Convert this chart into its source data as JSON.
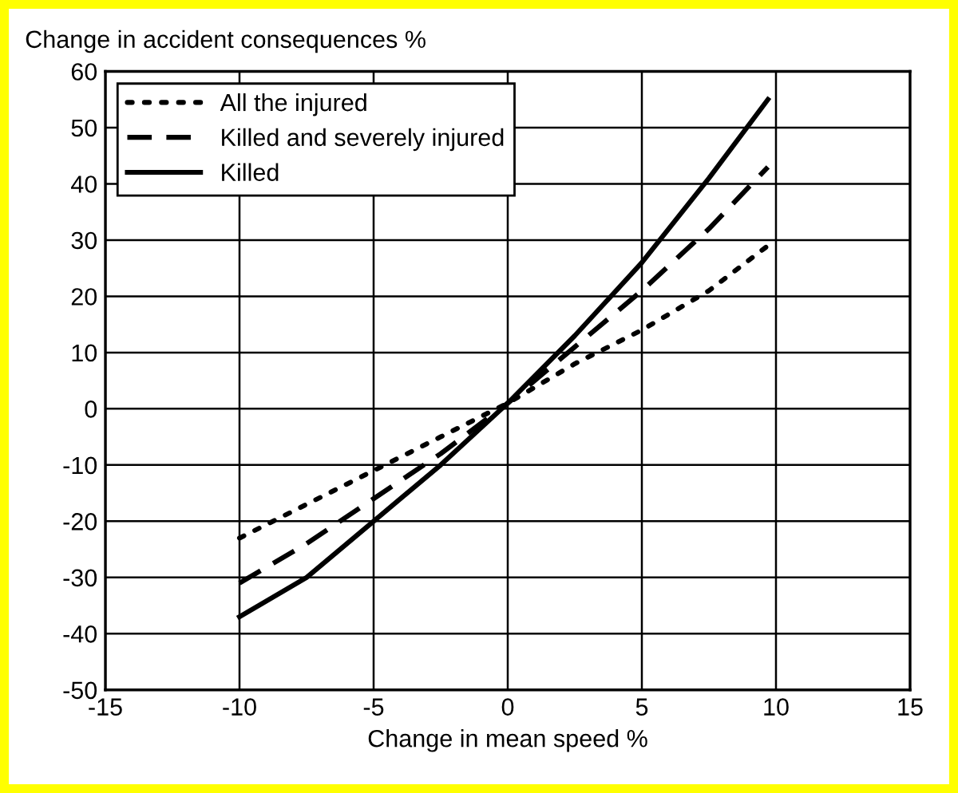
{
  "chart_data": {
    "type": "line",
    "xlabel": "Change in mean speed %",
    "ylabel": "Change in accident consequences %",
    "series": [
      {
        "name": "All the injured",
        "color": "#000000",
        "line_style": "dotted",
        "x": [
          -10,
          -7.5,
          -5,
          -2.5,
          0,
          2.5,
          5,
          7.5,
          9.7
        ],
        "values": [
          -23,
          -17,
          -11,
          -5,
          1,
          8,
          14,
          21,
          29
        ]
      },
      {
        "name": "Killed and severely injured",
        "color": "#000000",
        "line_style": "dashed",
        "x": [
          -10,
          -7.5,
          -5,
          -2.5,
          0,
          2.5,
          5,
          7.5,
          9.7
        ],
        "values": [
          -31,
          -24,
          -16,
          -8,
          1,
          11,
          21,
          32,
          43
        ]
      },
      {
        "name": "Killed",
        "color": "#000000",
        "line_style": "solid",
        "x": [
          -10,
          -7.5,
          -5,
          -2.5,
          0,
          2.5,
          5,
          7.5,
          9.7
        ],
        "values": [
          -37,
          -30,
          -20,
          -10,
          1,
          13,
          26,
          41,
          55
        ]
      }
    ],
    "xlim": [
      -15,
      15
    ],
    "xticks": [
      -15,
      -10,
      -5,
      0,
      5,
      10,
      15
    ],
    "ylim": [
      -50,
      60
    ],
    "yticks": [
      -50,
      -40,
      -30,
      -20,
      -10,
      0,
      10,
      20,
      30,
      40,
      50,
      60
    ],
    "grid": true,
    "legend": "top left",
    "marker": "none"
  }
}
